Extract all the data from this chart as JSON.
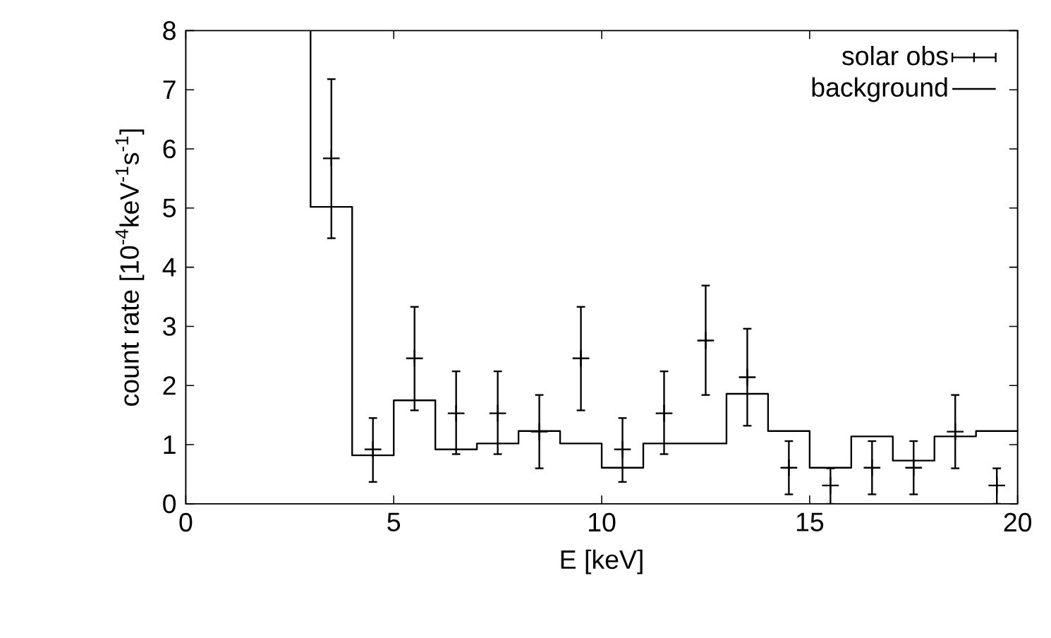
{
  "chart_data": {
    "type": "scatter",
    "xlabel": "E [keV]",
    "ylabel": "count rate [10$^{-4}$keV$^{-1}$s$^{-1}$]",
    "xlim": [
      0,
      20
    ],
    "ylim": [
      0,
      8
    ],
    "xticks": [
      0,
      5,
      10,
      15,
      20
    ],
    "yticks": [
      0,
      1,
      2,
      3,
      4,
      5,
      6,
      7,
      8
    ],
    "legend": "top right",
    "series": [
      {
        "name": "solar obs",
        "type": "scatter",
        "marker": "cross",
        "color": "#000000",
        "x": [
          3.5,
          4.5,
          5.5,
          6.5,
          7.5,
          8.5,
          9.5,
          10.5,
          11.5,
          12.5,
          13.5,
          14.5,
          15.5,
          16.5,
          17.5,
          18.5,
          19.5
        ],
        "values": [
          5.84,
          0.92,
          2.46,
          1.53,
          1.53,
          1.22,
          2.46,
          0.92,
          1.53,
          2.76,
          2.14,
          0.61,
          0.31,
          0.61,
          0.61,
          1.22,
          0.31
        ],
        "errors": [
          [
            4.49,
            7.18
          ],
          [
            0.37,
            1.45
          ],
          [
            1.58,
            3.33
          ],
          [
            0.84,
            2.24
          ],
          [
            0.84,
            2.24
          ],
          [
            0.6,
            1.84
          ],
          [
            1.58,
            3.33
          ],
          [
            0.37,
            1.45
          ],
          [
            0.84,
            2.24
          ],
          [
            1.84,
            3.69
          ],
          [
            1.32,
            2.96
          ],
          [
            0.16,
            1.06
          ],
          [
            0.0,
            0.6
          ],
          [
            0.16,
            1.06
          ],
          [
            0.16,
            1.06
          ],
          [
            0.6,
            1.84
          ],
          [
            0.0,
            0.6
          ]
        ]
      },
      {
        "name": "background",
        "type": "step",
        "color": "#000000",
        "x": [
          3,
          3,
          4,
          5,
          6,
          7,
          8,
          9,
          10,
          11,
          12,
          13,
          14,
          15,
          16,
          17,
          18,
          19,
          20
        ],
        "values": [
          8,
          5.02,
          0.82,
          1.75,
          0.92,
          1.02,
          1.23,
          1.02,
          0.61,
          1.02,
          1.02,
          1.86,
          1.23,
          0.61,
          1.14,
          0.73,
          1.14,
          1.23,
          1.23
        ]
      }
    ]
  }
}
